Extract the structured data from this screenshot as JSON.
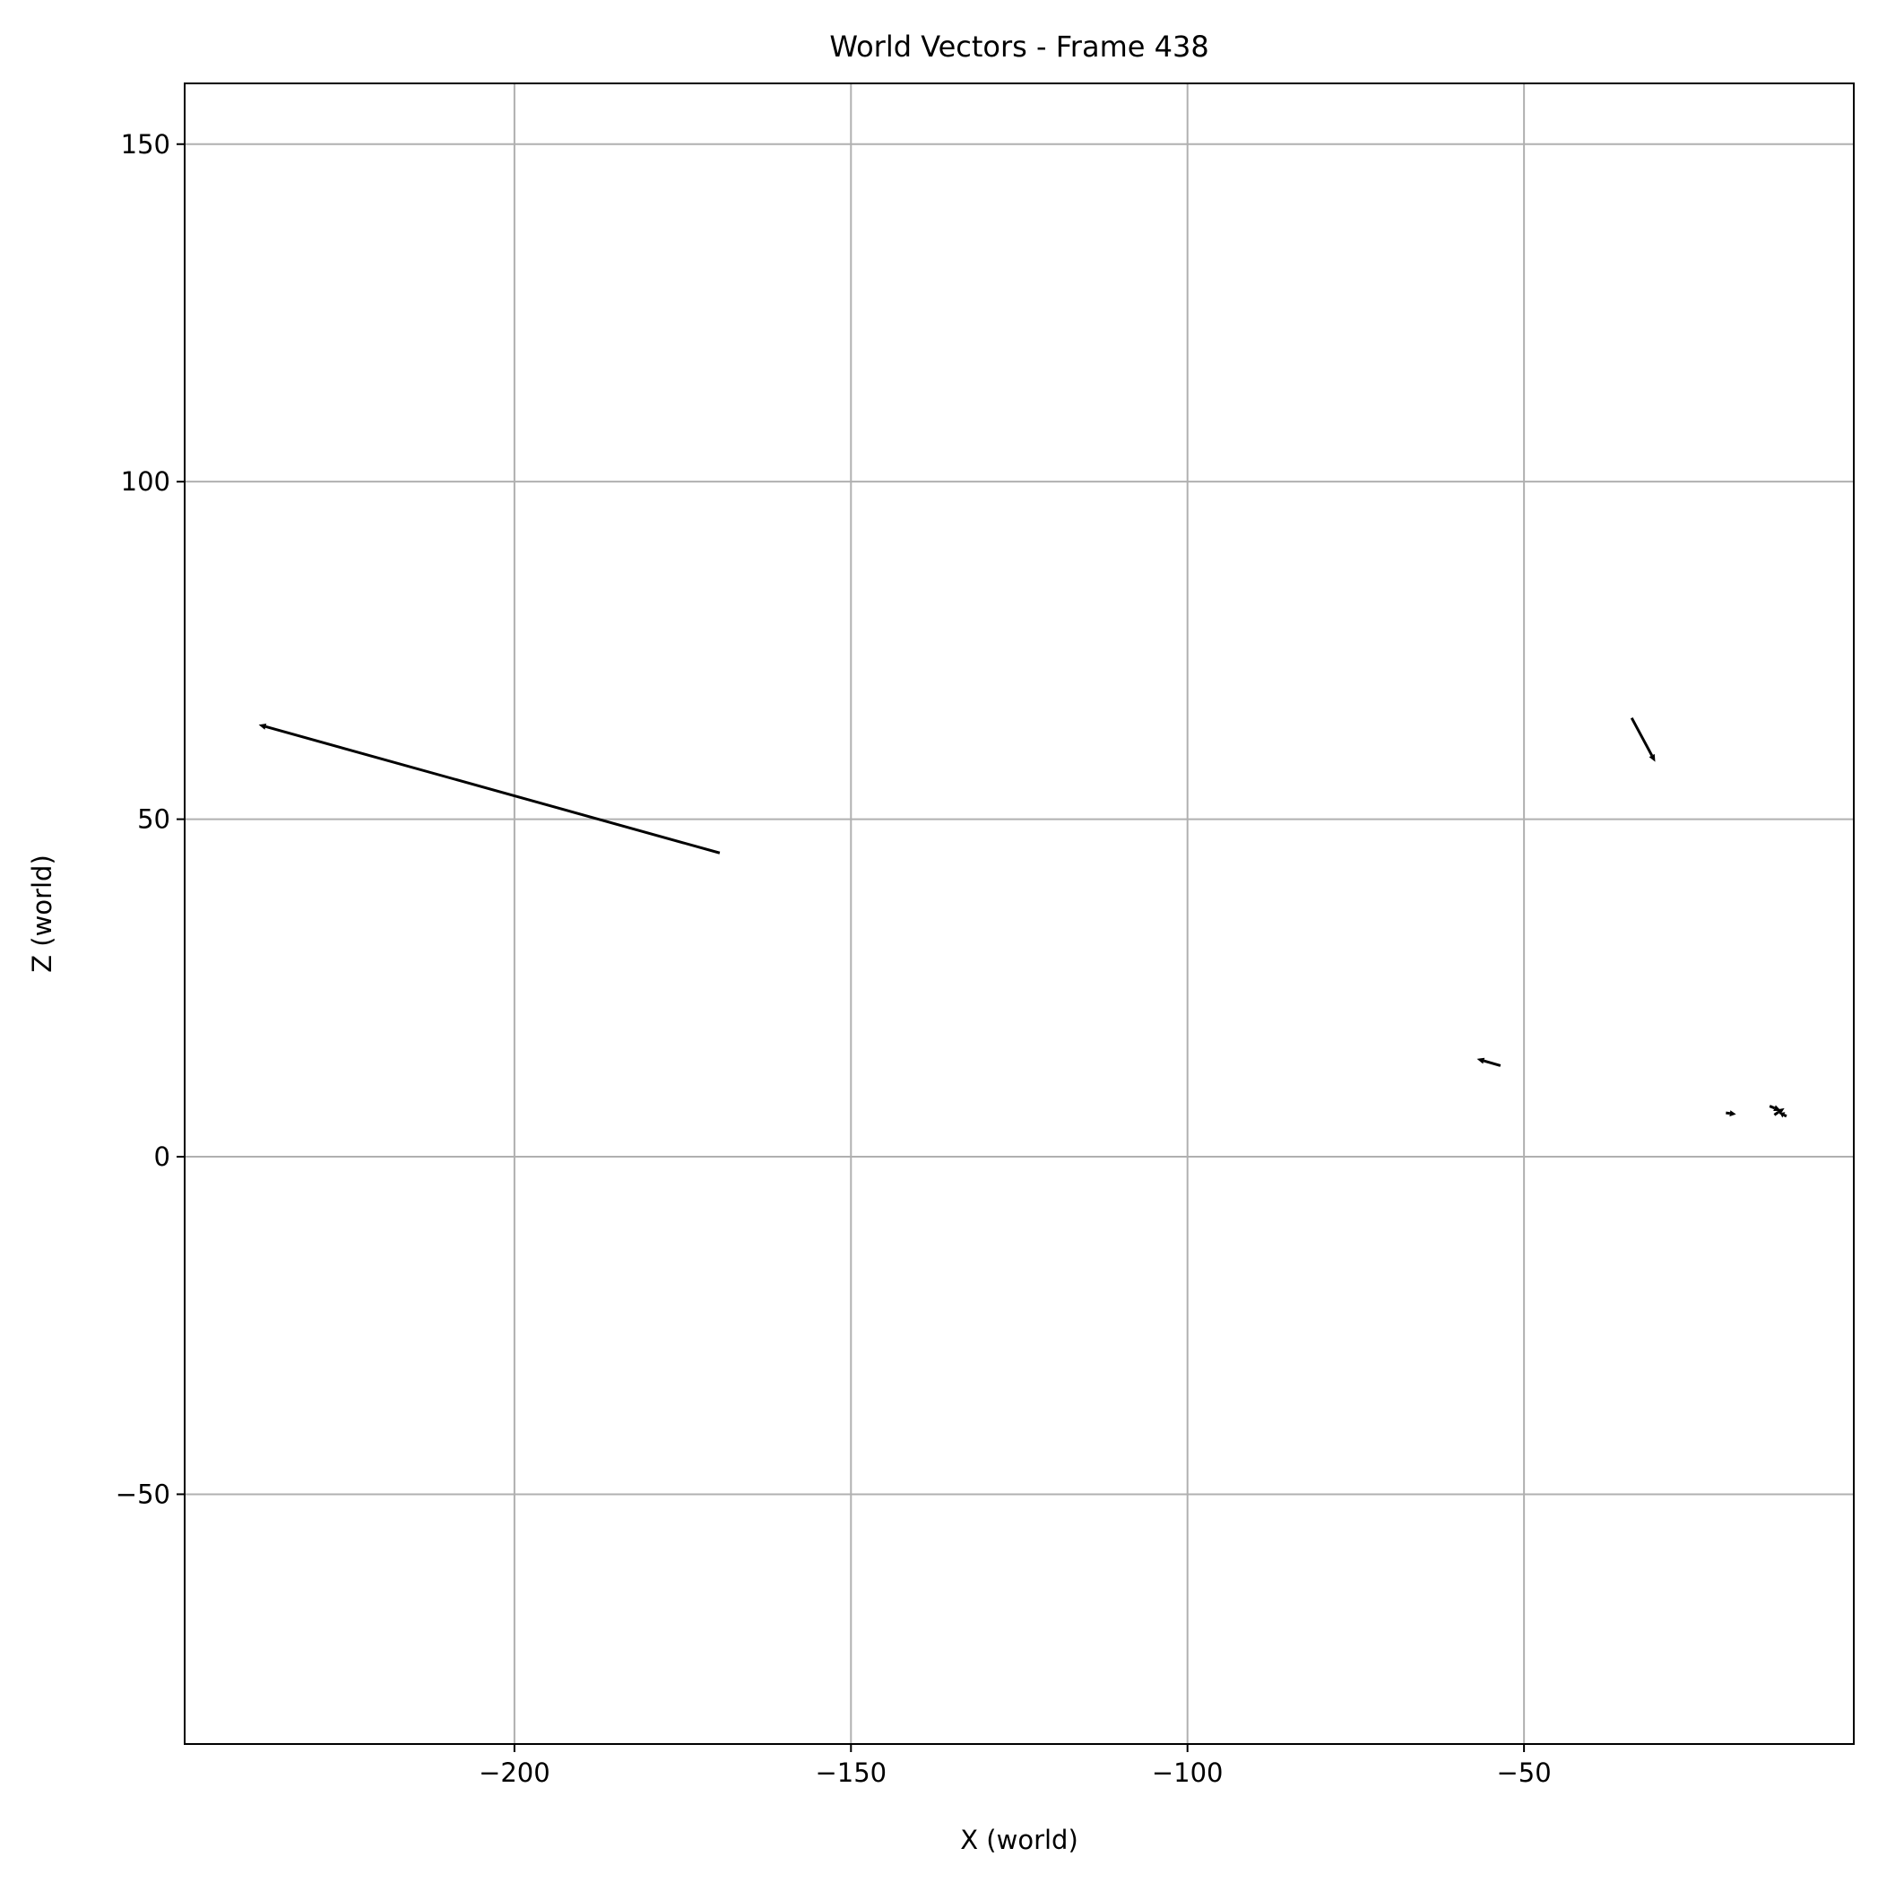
{
  "chart_data": {
    "type": "quiver",
    "title": "World Vectors - Frame 438",
    "xlabel": "X (world)",
    "ylabel": "Z (world)",
    "xlim": [
      -249,
      -1
    ],
    "ylim": [
      -87,
      159
    ],
    "xticks": [
      -200,
      -150,
      -100,
      -50
    ],
    "xtick_labels": [
      "−200",
      "−150",
      "−100",
      "−50"
    ],
    "yticks": [
      -50,
      0,
      50,
      100,
      150
    ],
    "ytick_labels": [
      "−50",
      "0",
      "50",
      "100",
      "150"
    ],
    "grid": true,
    "color": "#000000",
    "vectors": [
      {
        "x0": -169.5,
        "z0": 45.0,
        "x1": -238.0,
        "z1": 64.0
      },
      {
        "x0": -34.0,
        "z0": 65.0,
        "x1": -30.5,
        "z1": 58.5
      },
      {
        "x0": -53.5,
        "z0": 13.5,
        "x1": -57.0,
        "z1": 14.5
      },
      {
        "x0": -20.0,
        "z0": 6.5,
        "x1": -18.5,
        "z1": 6.3
      },
      {
        "x0": -13.5,
        "z0": 7.5,
        "x1": -11.8,
        "z1": 6.8
      },
      {
        "x0": -12.8,
        "z0": 6.2,
        "x1": -11.3,
        "z1": 7.2
      },
      {
        "x0": -11.0,
        "z0": 6.0,
        "x1": -12.0,
        "z1": 6.5
      }
    ]
  }
}
